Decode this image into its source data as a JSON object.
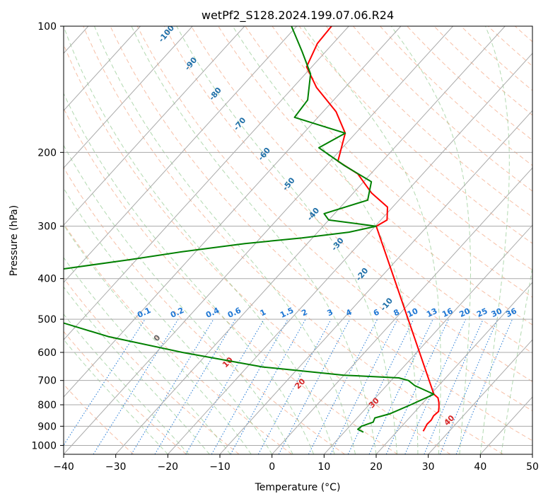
{
  "chart_data": {
    "type": "line",
    "title": "wetPf2_S128.2024.199.07.06.R24",
    "xlabel": "Temperature (°C)",
    "ylabel": "Pressure (hPa)",
    "xlim": [
      -40,
      50
    ],
    "ylim": [
      1050,
      100
    ],
    "y_scale": "log",
    "x_ticks": [
      -40,
      -30,
      -20,
      -10,
      0,
      10,
      20,
      30,
      40,
      50
    ],
    "y_ticks": [
      100,
      200,
      300,
      400,
      500,
      600,
      700,
      800,
      900,
      1000
    ],
    "grid": true,
    "skew": "skew-T log-p",
    "colors": {
      "temperature": "#ff0000",
      "dewpoint": "#008000",
      "dry_adiabat": "#f4a582",
      "moist_adiabat": "#7fbf7b",
      "mixing_ratio": "#1f77d4",
      "isotherm": "#aaaaaa",
      "isobar": "#aaaaaa",
      "dry_adiabat_label": "#d62728",
      "moist_adiabat_label": "#1f6fa8"
    },
    "series": [
      {
        "name": "Temperature",
        "points": [
          {
            "p": 925,
            "t": 25.0
          },
          {
            "p": 910,
            "t": 24.8
          },
          {
            "p": 890,
            "t": 24.5
          },
          {
            "p": 870,
            "t": 24.6
          },
          {
            "p": 850,
            "t": 24.3
          },
          {
            "p": 830,
            "t": 24.5
          },
          {
            "p": 810,
            "t": 23.8
          },
          {
            "p": 790,
            "t": 23.0
          },
          {
            "p": 770,
            "t": 22.0
          },
          {
            "p": 755,
            "t": 20.6
          },
          {
            "p": 300,
            "t": -19.8
          },
          {
            "p": 290,
            "t": -18.8
          },
          {
            "p": 270,
            "t": -21.0
          },
          {
            "p": 250,
            "t": -26.5
          },
          {
            "p": 225,
            "t": -32.5
          },
          {
            "p": 210,
            "t": -38.5
          },
          {
            "p": 180,
            "t": -42.0
          },
          {
            "p": 160,
            "t": -47.5
          },
          {
            "p": 140,
            "t": -55.5
          },
          {
            "p": 125,
            "t": -61.0
          },
          {
            "p": 110,
            "t": -63.0
          },
          {
            "p": 100,
            "t": -63.3
          }
        ]
      },
      {
        "name": "Dewpoint",
        "points": [
          {
            "p": 930,
            "t": 13.7
          },
          {
            "p": 915,
            "t": 12.1
          },
          {
            "p": 900,
            "t": 12.3
          },
          {
            "p": 880,
            "t": 13.8
          },
          {
            "p": 860,
            "t": 13.4
          },
          {
            "p": 840,
            "t": 15.6
          },
          {
            "p": 800,
            "t": 18.0
          },
          {
            "p": 755,
            "t": 20.6
          },
          {
            "p": 720,
            "t": 15.4
          },
          {
            "p": 700,
            "t": 13.3
          },
          {
            "p": 690,
            "t": 11.0
          },
          {
            "p": 680,
            "t": 0.0
          },
          {
            "p": 650,
            "t": -17.0
          },
          {
            "p": 600,
            "t": -35.0
          },
          {
            "p": 550,
            "t": -52.0
          },
          {
            "p": 500,
            "t": -66.0
          },
          {
            "p": 380,
            "t": -72.8
          },
          {
            "p": 360,
            "t": -61.0
          },
          {
            "p": 345,
            "t": -52.5
          },
          {
            "p": 330,
            "t": -42.0
          },
          {
            "p": 320,
            "t": -32.0
          },
          {
            "p": 310,
            "t": -24.0
          },
          {
            "p": 300,
            "t": -19.8
          },
          {
            "p": 290,
            "t": -30.0
          },
          {
            "p": 280,
            "t": -32.0
          },
          {
            "p": 260,
            "t": -26.0
          },
          {
            "p": 235,
            "t": -28.5
          },
          {
            "p": 215,
            "t": -36.5
          },
          {
            "p": 195,
            "t": -44.5
          },
          {
            "p": 180,
            "t": -42.0
          },
          {
            "p": 165,
            "t": -54.5
          },
          {
            "p": 150,
            "t": -55.0
          },
          {
            "p": 130,
            "t": -59.0
          },
          {
            "p": 115,
            "t": -64.5
          },
          {
            "p": 100,
            "t": -71.0
          }
        ]
      }
    ],
    "annotations": {
      "mixing_ratio_labels": [
        "0.1",
        "0.2",
        "0.4",
        "0.6",
        "1",
        "1.5",
        "2",
        "3",
        "4",
        "6",
        "8",
        "10",
        "13",
        "16",
        "20",
        "25",
        "30",
        "36"
      ],
      "mixing_ratio_label_pressure": 500,
      "dry_adiabat_labels": [
        "0",
        "10",
        "20",
        "30",
        "40"
      ],
      "moist_adiabat_labels": [
        "-100",
        "-90",
        "-80",
        "-70",
        "-60",
        "-50",
        "-40",
        "-30",
        "-20",
        "-10"
      ]
    }
  }
}
